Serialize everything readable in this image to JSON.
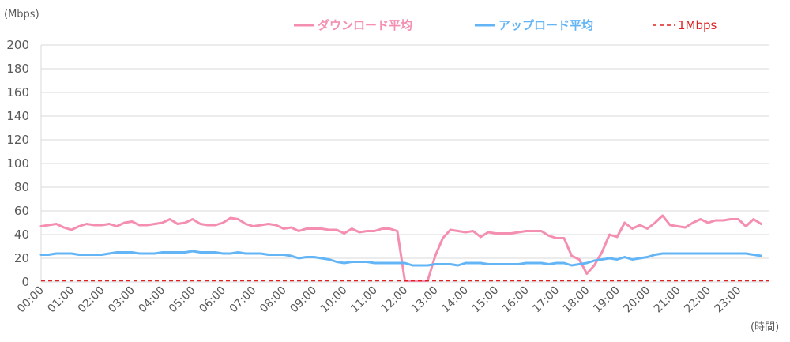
{
  "chart_data": {
    "type": "line",
    "y_unit": "(Mbps)",
    "x_unit": "(時間)",
    "ylim": [
      0,
      200
    ],
    "y_ticks": [
      0,
      20,
      40,
      60,
      80,
      100,
      120,
      140,
      160,
      180,
      200
    ],
    "x_tick_labels": [
      "00:00",
      "01:00",
      "02:00",
      "03:00",
      "04:00",
      "05:00",
      "06:00",
      "07:00",
      "08:00",
      "09:00",
      "10:00",
      "11:00",
      "12:00",
      "13:00",
      "14:00",
      "15:00",
      "16:00",
      "17:00",
      "18:00",
      "19:00",
      "20:00",
      "21:00",
      "22:00",
      "23:00"
    ],
    "grid": true,
    "legend_position": "top-right",
    "points_per_hour": 4,
    "series": [
      {
        "name": "ダウンロード平均",
        "color": "#f48fb1",
        "values": [
          47,
          48,
          49,
          46,
          44,
          47,
          49,
          48,
          48,
          49,
          47,
          50,
          51,
          48,
          48,
          49,
          50,
          53,
          49,
          50,
          53,
          49,
          48,
          48,
          50,
          54,
          53,
          49,
          47,
          48,
          49,
          48,
          45,
          46,
          43,
          45,
          45,
          45,
          44,
          44,
          41,
          45,
          42,
          43,
          43,
          45,
          45,
          43,
          1,
          1,
          1,
          1,
          22,
          37,
          44,
          43,
          42,
          43,
          38,
          42,
          41,
          41,
          41,
          42,
          43,
          43,
          43,
          39,
          37,
          37,
          22,
          19,
          7,
          14,
          25,
          40,
          38,
          50,
          45,
          48,
          45,
          50,
          56,
          48,
          47,
          46,
          50,
          53,
          50,
          52,
          52,
          53,
          53,
          47,
          53,
          49
        ]
      },
      {
        "name": "アップロード平均",
        "color": "#64b5f6",
        "values": [
          23,
          23,
          24,
          24,
          24,
          23,
          23,
          23,
          23,
          24,
          25,
          25,
          25,
          24,
          24,
          24,
          25,
          25,
          25,
          25,
          26,
          25,
          25,
          25,
          24,
          24,
          25,
          24,
          24,
          24,
          23,
          23,
          23,
          22,
          20,
          21,
          21,
          20,
          19,
          17,
          16,
          17,
          17,
          17,
          16,
          16,
          16,
          16,
          16,
          14,
          14,
          14,
          15,
          15,
          15,
          14,
          16,
          16,
          16,
          15,
          15,
          15,
          15,
          15,
          16,
          16,
          16,
          15,
          16,
          16,
          14,
          15,
          16,
          18,
          19,
          20,
          19,
          21,
          19,
          20,
          21,
          23,
          24,
          24,
          24,
          24,
          24,
          24,
          24,
          24,
          24,
          24,
          24,
          24,
          23,
          22
        ]
      },
      {
        "name": "1Mbps",
        "color": "#e02020",
        "style": "dashed",
        "constant": 1
      }
    ]
  }
}
